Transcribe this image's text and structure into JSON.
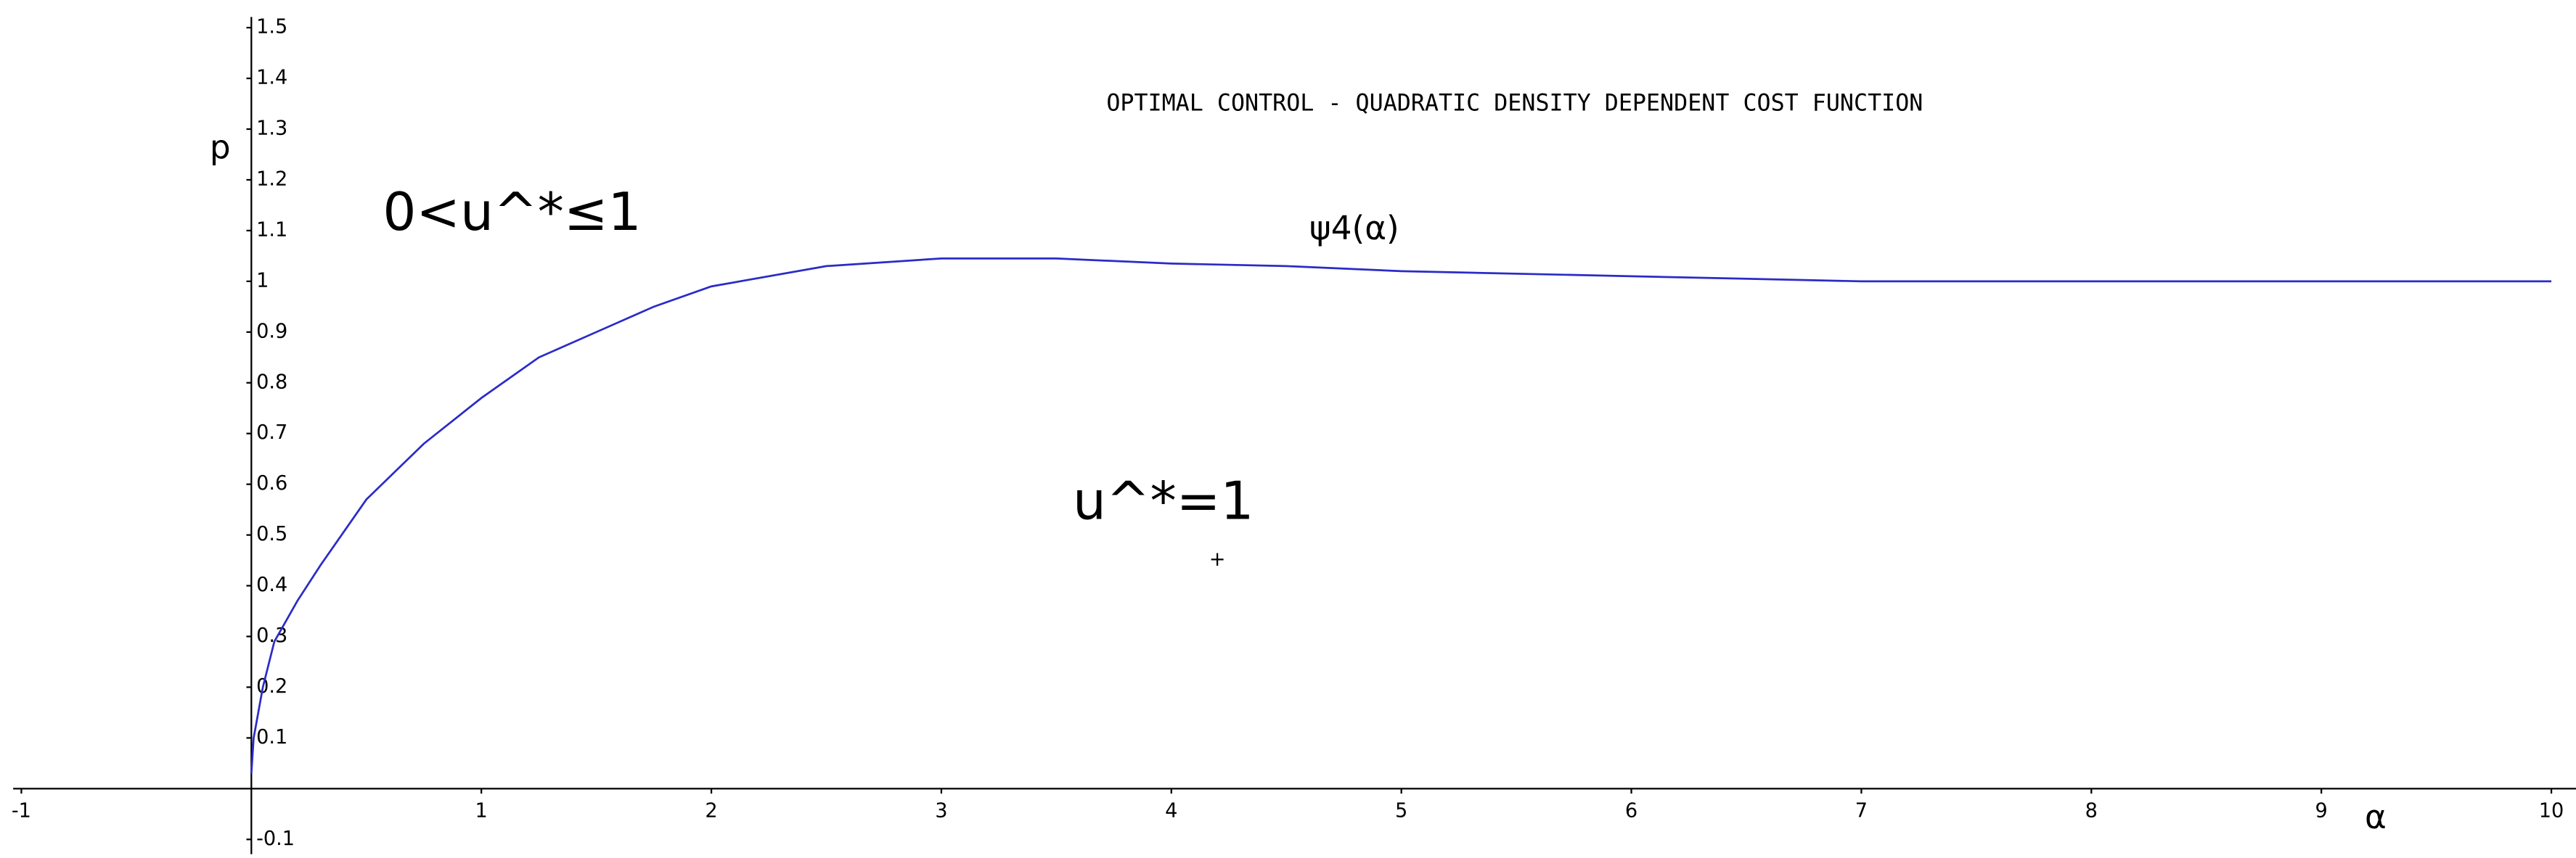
{
  "chart_data": {
    "type": "line",
    "title": "OPTIMAL CONTROL - QUADRATIC DENSITY DEPENDENT COST FUNCTION",
    "x_label": "α",
    "y_label": "p",
    "x": [
      0,
      0.01,
      0.05,
      0.1,
      0.2,
      0.3,
      0.5,
      0.75,
      1,
      1.25,
      1.5,
      1.75,
      2,
      2.5,
      3,
      3.5,
      4,
      4.5,
      5,
      6,
      7,
      8,
      9,
      10
    ],
    "series": [
      {
        "name": "ψ4(α)",
        "color": "#2b2bc8",
        "values": [
          0.03,
          0.1,
          0.2,
          0.29,
          0.37,
          0.44,
          0.57,
          0.68,
          0.77,
          0.85,
          0.9,
          0.95,
          0.99,
          1.03,
          1.045,
          1.045,
          1.035,
          1.03,
          1.02,
          1.01,
          1.0,
          1.0,
          1.0,
          1.0
        ]
      }
    ],
    "annotations": [
      {
        "text": "0<u^*≤1",
        "x": 1,
        "y": 1.13
      },
      {
        "text": "u^*=1",
        "x": 4,
        "y": 0.56
      },
      {
        "text": "+",
        "x": 4.2,
        "y": 0.45
      }
    ],
    "xlim": [
      -1,
      10
    ],
    "ylim": [
      -0.1,
      1.5
    ],
    "xticks": [
      -1,
      1,
      2,
      3,
      4,
      5,
      6,
      7,
      8,
      9,
      10
    ],
    "yticks": [
      -0.1,
      0.1,
      0.2,
      0.3,
      0.4,
      0.5,
      0.6,
      0.7,
      0.8,
      0.9,
      1,
      1.1,
      1.2,
      1.3,
      1.4,
      1.5
    ],
    "grid": false
  }
}
